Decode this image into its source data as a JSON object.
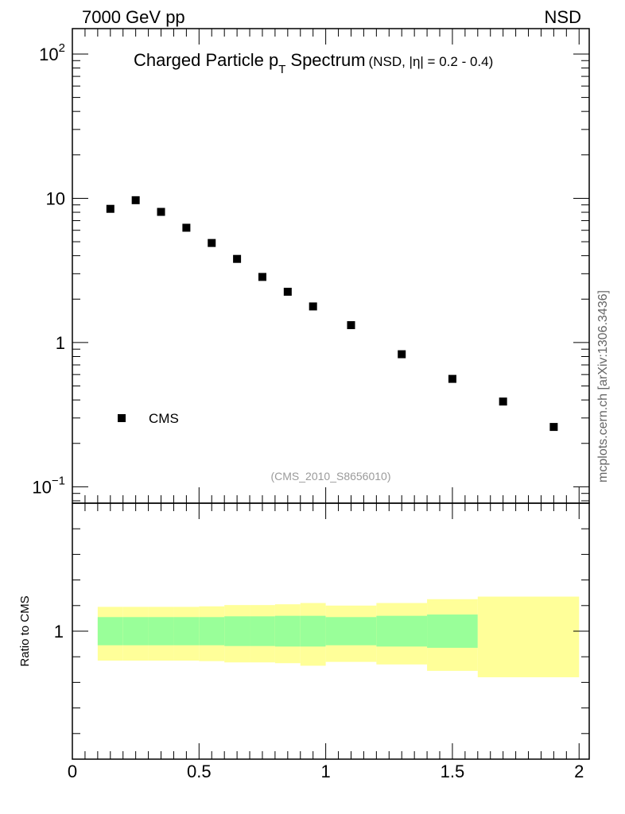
{
  "header": {
    "left": "7000 GeV pp",
    "right": "NSD"
  },
  "title": {
    "main_pre": "Charged Particle p",
    "main_sub": "T",
    "main_post": "Spectrum",
    "extra": "(NSD, |η| = 0.2 - 0.4)"
  },
  "watermark": "(CMS_2010_S8656010)",
  "side_label": "mcplots.cern.ch [arXiv:1306.3436]",
  "legend": {
    "label": "CMS",
    "position": "bottom-left"
  },
  "colors": {
    "marker": "#000000",
    "band_inner": "#99ff99",
    "band_outer": "#ffff99",
    "watermark": "#9a9a9a"
  },
  "chart_data": [
    {
      "type": "scatter",
      "panel": "main",
      "yscale": "log",
      "xlim": [
        0,
        2.04
      ],
      "ylim": [
        0.077,
        150
      ],
      "y_ticks": [
        {
          "value": 100,
          "base": "10",
          "exp": "2"
        },
        {
          "value": 10,
          "base": "10",
          "exp": ""
        },
        {
          "value": 1,
          "base": "1",
          "exp": ""
        },
        {
          "value": 0.1,
          "base": "10",
          "exp": "−1"
        }
      ],
      "series": [
        {
          "name": "CMS",
          "x": [
            0.15,
            0.25,
            0.35,
            0.45,
            0.55,
            0.65,
            0.75,
            0.85,
            0.95,
            1.1,
            1.3,
            1.5,
            1.7,
            1.9
          ],
          "y": [
            8.45,
            9.7,
            8.05,
            6.25,
            4.9,
            3.8,
            2.85,
            2.25,
            1.78,
            1.32,
            0.83,
            0.56,
            0.39,
            0.26
          ]
        }
      ]
    },
    {
      "type": "area",
      "panel": "ratio",
      "ylabel": "Ratio to CMS",
      "xlim": [
        0,
        2.04
      ],
      "ylim": [
        0.5,
        1.5
      ],
      "x_ticks": [
        "0",
        "0.5",
        "1",
        "1.5",
        "2"
      ],
      "y_ticks": [
        "1"
      ],
      "bins": [
        {
          "x0": 0.1,
          "x1": 0.2,
          "inner": [
            0.945,
            1.055
          ],
          "outer": [
            0.885,
            1.095
          ]
        },
        {
          "x0": 0.2,
          "x1": 0.3,
          "inner": [
            0.945,
            1.055
          ],
          "outer": [
            0.885,
            1.095
          ]
        },
        {
          "x0": 0.3,
          "x1": 0.4,
          "inner": [
            0.945,
            1.055
          ],
          "outer": [
            0.885,
            1.095
          ]
        },
        {
          "x0": 0.4,
          "x1": 0.5,
          "inner": [
            0.945,
            1.055
          ],
          "outer": [
            0.885,
            1.095
          ]
        },
        {
          "x0": 0.5,
          "x1": 0.6,
          "inner": [
            0.945,
            1.055
          ],
          "outer": [
            0.883,
            1.097
          ]
        },
        {
          "x0": 0.6,
          "x1": 0.7,
          "inner": [
            0.942,
            1.058
          ],
          "outer": [
            0.878,
            1.102
          ]
        },
        {
          "x0": 0.7,
          "x1": 0.8,
          "inner": [
            0.942,
            1.058
          ],
          "outer": [
            0.878,
            1.102
          ]
        },
        {
          "x0": 0.8,
          "x1": 0.9,
          "inner": [
            0.94,
            1.06
          ],
          "outer": [
            0.875,
            1.105
          ]
        },
        {
          "x0": 0.9,
          "x1": 1.0,
          "inner": [
            0.94,
            1.06
          ],
          "outer": [
            0.865,
            1.11
          ]
        },
        {
          "x0": 1.0,
          "x1": 1.2,
          "inner": [
            0.945,
            1.055
          ],
          "outer": [
            0.88,
            1.1
          ]
        },
        {
          "x0": 1.2,
          "x1": 1.4,
          "inner": [
            0.94,
            1.06
          ],
          "outer": [
            0.87,
            1.11
          ]
        },
        {
          "x0": 1.4,
          "x1": 1.6,
          "inner": [
            0.935,
            1.065
          ],
          "outer": [
            0.845,
            1.125
          ]
        },
        {
          "x0": 1.6,
          "x1": 2.0,
          "inner": [
            1.0,
            1.0
          ],
          "outer": [
            0.82,
            1.135
          ]
        }
      ]
    }
  ]
}
